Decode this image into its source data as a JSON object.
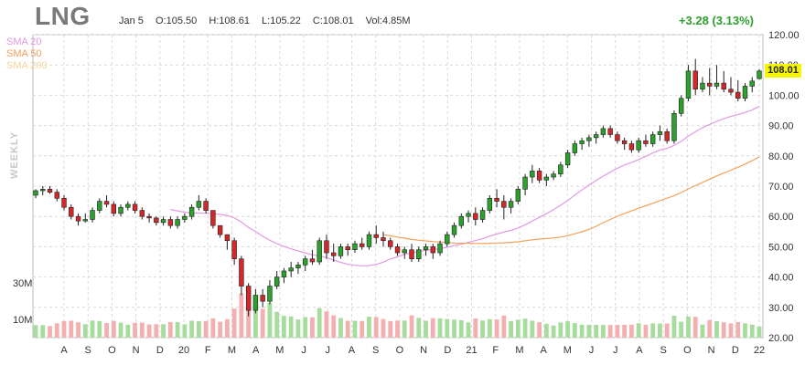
{
  "header": {
    "ticker": "LNG",
    "date": "Jan 5",
    "open": "O:105.50",
    "high": "H:108.61",
    "low": "L:105.22",
    "close": "C:108.01",
    "volume": "Vol:4.85M",
    "change": "+3.28 (3.13%)"
  },
  "legend": {
    "sma20": "SMA 20",
    "sma50": "SMA 50",
    "sma200": "SMA 200"
  },
  "side_label": "WEEKLY",
  "last_price": "108.01",
  "colors": {
    "up": "#2ca02c",
    "down": "#d62728",
    "vol_up": "#a6dc9c",
    "vol_down": "#f4b0b0",
    "sma20": "#e39ae4",
    "sma50": "#f3a15a",
    "sma200": "#f6d49b",
    "change": "#2ca02c",
    "last_price_bg": "#f5f500"
  },
  "chart_data": {
    "type": "candlestick",
    "y_ticks": [
      "120.00",
      "110.00",
      "100.00",
      "90.00",
      "80.00",
      "70.00",
      "60.00",
      "50.00",
      "40.00",
      "30.00",
      "20.00"
    ],
    "ylim": [
      20,
      120
    ],
    "volume_ticks": [
      "30M",
      "10M"
    ],
    "x_ticks": [
      "A",
      "S",
      "O",
      "N",
      "D",
      "20",
      "F",
      "M",
      "A",
      "M",
      "J",
      "J",
      "A",
      "S",
      "O",
      "N",
      "D",
      "21",
      "F",
      "M",
      "A",
      "M",
      "J",
      "J",
      "A",
      "S",
      "O",
      "N",
      "D",
      "22"
    ],
    "grid": true,
    "candles": [
      [
        67,
        69,
        66,
        68.5
      ],
      [
        68.5,
        70,
        67,
        69
      ],
      [
        69,
        70,
        67.5,
        68
      ],
      [
        68,
        69,
        65,
        66
      ],
      [
        66,
        67,
        62,
        63
      ],
      [
        63,
        64,
        59,
        60
      ],
      [
        60,
        61,
        57,
        58.5
      ],
      [
        58.5,
        61,
        58,
        59
      ],
      [
        59,
        63,
        58,
        62
      ],
      [
        62,
        66,
        61,
        65
      ],
      [
        65,
        67,
        63,
        64
      ],
      [
        64,
        65,
        60,
        61
      ],
      [
        61,
        64,
        60,
        63
      ],
      [
        63,
        65,
        62,
        64
      ],
      [
        64,
        65,
        61,
        62
      ],
      [
        62,
        63,
        59,
        60
      ],
      [
        60,
        61,
        58,
        59.5
      ],
      [
        59.5,
        60,
        57,
        58
      ],
      [
        58,
        60,
        57,
        59
      ],
      [
        59,
        60,
        56,
        57
      ],
      [
        57,
        60,
        56,
        59
      ],
      [
        59,
        61,
        58,
        60
      ],
      [
        60,
        64,
        59,
        63
      ],
      [
        63,
        67,
        62,
        65
      ],
      [
        65,
        66,
        61,
        62
      ],
      [
        62,
        62,
        56,
        57
      ],
      [
        57,
        57,
        53,
        54
      ],
      [
        54,
        54,
        49,
        52
      ],
      [
        52,
        53,
        44,
        46
      ],
      [
        46,
        47,
        34,
        37
      ],
      [
        37,
        38,
        27,
        29
      ],
      [
        29,
        36,
        28,
        34
      ],
      [
        34,
        36,
        30,
        32
      ],
      [
        32,
        39,
        31,
        37
      ],
      [
        37,
        42,
        36,
        40
      ],
      [
        40,
        43,
        38,
        42
      ],
      [
        42,
        45,
        40,
        43
      ],
      [
        43,
        45,
        41,
        44
      ],
      [
        44,
        47,
        42,
        46
      ],
      [
        46,
        49,
        44,
        45
      ],
      [
        45,
        53,
        44,
        52
      ],
      [
        52,
        54,
        46,
        48
      ],
      [
        48,
        51,
        45,
        47
      ],
      [
        47,
        51,
        46,
        50
      ],
      [
        50,
        51,
        47,
        49
      ],
      [
        49,
        52,
        48,
        51
      ],
      [
        51,
        53,
        49,
        50
      ],
      [
        50,
        55,
        49,
        54
      ],
      [
        54,
        57,
        51,
        53
      ],
      [
        53,
        55,
        50,
        52
      ],
      [
        52,
        53,
        49,
        50
      ],
      [
        50,
        51,
        47,
        48
      ],
      [
        48,
        50,
        46,
        49
      ],
      [
        49,
        51,
        45,
        46
      ],
      [
        46,
        50,
        45,
        49
      ],
      [
        49,
        51,
        47,
        50
      ],
      [
        50,
        51,
        46,
        48
      ],
      [
        48,
        52,
        47,
        51
      ],
      [
        51,
        55,
        50,
        54
      ],
      [
        54,
        58,
        53,
        57
      ],
      [
        57,
        61,
        56,
        60
      ],
      [
        60,
        62,
        58,
        61
      ],
      [
        61,
        63,
        57,
        59
      ],
      [
        59,
        63,
        58,
        62
      ],
      [
        62,
        67,
        61,
        66
      ],
      [
        66,
        69,
        63,
        65
      ],
      [
        65,
        67,
        59,
        63
      ],
      [
        63,
        66,
        61,
        65
      ],
      [
        65,
        70,
        64,
        69
      ],
      [
        69,
        74,
        67,
        73
      ],
      [
        73,
        77,
        71,
        75
      ],
      [
        75,
        76,
        71,
        72
      ],
      [
        72,
        74,
        70,
        73
      ],
      [
        73,
        75,
        72,
        74
      ],
      [
        74,
        78,
        73,
        77
      ],
      [
        77,
        82,
        76,
        81
      ],
      [
        81,
        85,
        80,
        84
      ],
      [
        84,
        86,
        82,
        85
      ],
      [
        85,
        87,
        83,
        86
      ],
      [
        86,
        88,
        84,
        87
      ],
      [
        87,
        90,
        86,
        89
      ],
      [
        89,
        90,
        86,
        87
      ],
      [
        87,
        88,
        84,
        85
      ],
      [
        85,
        86,
        82,
        84
      ],
      [
        84,
        85,
        81,
        82
      ],
      [
        82,
        86,
        81,
        85
      ],
      [
        85,
        87,
        83,
        84
      ],
      [
        84,
        88,
        83,
        87
      ],
      [
        87,
        90,
        85,
        88
      ],
      [
        88,
        89,
        84,
        85
      ],
      [
        85,
        95,
        84,
        94
      ],
      [
        94,
        100,
        93,
        99
      ],
      [
        99,
        110,
        98,
        108
      ],
      [
        108,
        112,
        100,
        102
      ],
      [
        102,
        106,
        101,
        104
      ],
      [
        104,
        109,
        100,
        103
      ],
      [
        103,
        110,
        102,
        104
      ],
      [
        104,
        108,
        101,
        102
      ],
      [
        102,
        106,
        100,
        101
      ],
      [
        101,
        105,
        98,
        99
      ],
      [
        99,
        104,
        98,
        103
      ],
      [
        103,
        106,
        101,
        104.7
      ],
      [
        105.5,
        108.61,
        105.22,
        108.01
      ]
    ]
  }
}
